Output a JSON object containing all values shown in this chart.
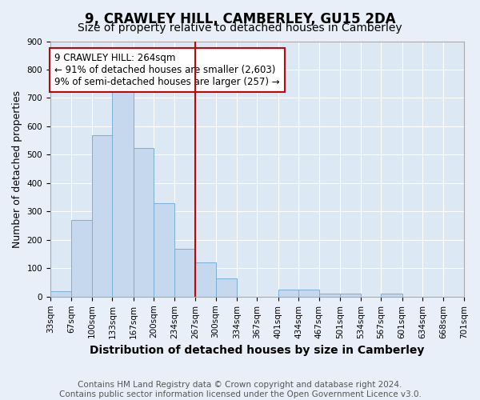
{
  "title": "9, CRAWLEY HILL, CAMBERLEY, GU15 2DA",
  "subtitle": "Size of property relative to detached houses in Camberley",
  "xlabel": "Distribution of detached houses by size in Camberley",
  "ylabel": "Number of detached properties",
  "footer_line1": "Contains HM Land Registry data © Crown copyright and database right 2024.",
  "footer_line2": "Contains public sector information licensed under the Open Government Licence v3.0.",
  "annotation_line1": "9 CRAWLEY HILL: 264sqm",
  "annotation_line2": "← 91% of detached houses are smaller (2,603)",
  "annotation_line3": "9% of semi-detached houses are larger (257) →",
  "bin_edges": [
    33,
    67,
    100,
    133,
    167,
    200,
    234,
    267,
    300,
    334,
    367,
    401,
    434,
    467,
    501,
    534,
    567,
    601,
    634,
    668,
    701
  ],
  "bar_heights": [
    20,
    270,
    570,
    730,
    525,
    330,
    170,
    120,
    65,
    0,
    0,
    25,
    25,
    10,
    10,
    0,
    12,
    0,
    0,
    0
  ],
  "bar_color": "#c5d8ee",
  "bar_edge_color": "#7bafd4",
  "red_line_x": 267,
  "ylim": [
    0,
    900
  ],
  "yticks": [
    0,
    100,
    200,
    300,
    400,
    500,
    600,
    700,
    800,
    900
  ],
  "background_color": "#e8eff8",
  "plot_bg_color": "#dce8f4",
  "grid_color": "#ffffff",
  "annotation_box_color": "#ffffff",
  "annotation_border_color": "#cc0000",
  "red_line_color": "#cc0000",
  "title_fontsize": 12,
  "subtitle_fontsize": 10,
  "xlabel_fontsize": 10,
  "ylabel_fontsize": 9,
  "tick_fontsize": 7.5,
  "annotation_fontsize": 8.5,
  "footer_fontsize": 7.5
}
